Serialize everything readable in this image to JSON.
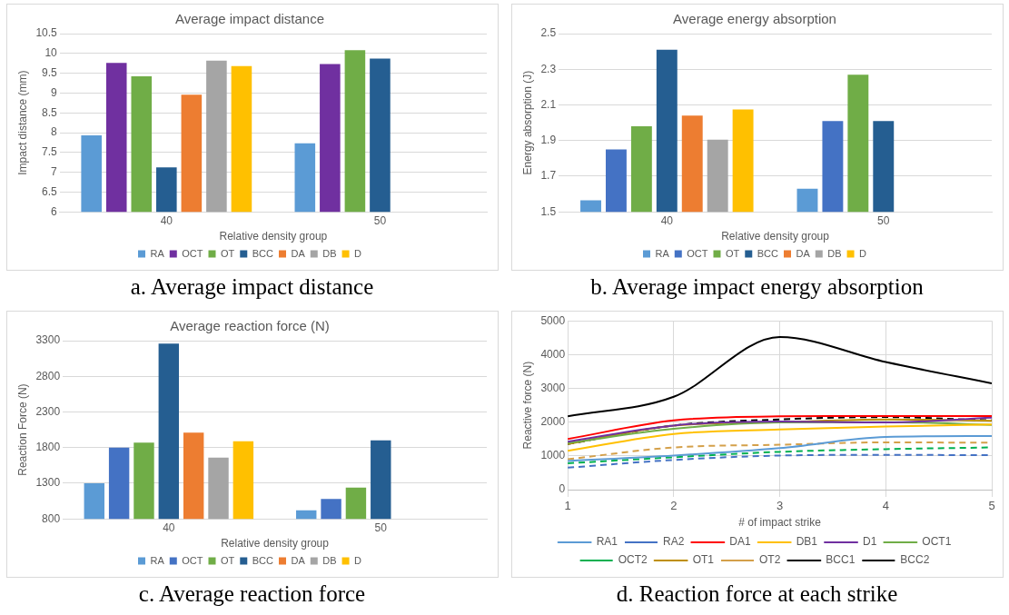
{
  "chart_data": [
    {
      "type": "bar",
      "title": "Average impact distance",
      "xlabel": "Relative density group",
      "ylabel": "Impact distance (mm)",
      "categories": [
        "40",
        "50"
      ],
      "series": [
        {
          "name": "RA",
          "color": "#5b9bd5",
          "values": [
            7.93,
            7.73
          ]
        },
        {
          "name": "OCT",
          "color": "#7030a0",
          "values": [
            9.76,
            9.73
          ]
        },
        {
          "name": "OT",
          "color": "#70ad47",
          "values": [
            9.42,
            10.08
          ]
        },
        {
          "name": "BCC",
          "color": "#255e91",
          "values": [
            7.12,
            9.87
          ]
        },
        {
          "name": "DA",
          "color": "#ed7d31",
          "values": [
            8.96,
            null
          ]
        },
        {
          "name": "DB",
          "color": "#a5a5a5",
          "values": [
            9.82,
            null
          ]
        },
        {
          "name": "D",
          "color": "#ffc000",
          "values": [
            9.68,
            null
          ]
        }
      ],
      "ylim": [
        6,
        10.5
      ],
      "yticks": [
        6,
        6.5,
        7,
        7.5,
        8,
        8.5,
        9,
        9.5,
        10,
        10.5
      ],
      "grid": "y",
      "legend": "bottom",
      "annotations": [
        "a. Average impact distance"
      ]
    },
    {
      "type": "bar",
      "title": "Average energy absorption",
      "xlabel": "Relative density group",
      "ylabel": "Energy absorption (J)",
      "categories": [
        "40",
        "50"
      ],
      "series": [
        {
          "name": "RA",
          "color": "#5b9bd5",
          "values": [
            1.565,
            1.63
          ]
        },
        {
          "name": "OCT",
          "color": "#4472c4",
          "values": [
            1.85,
            2.01
          ]
        },
        {
          "name": "OT",
          "color": "#70ad47",
          "values": [
            1.98,
            2.27
          ]
        },
        {
          "name": "BCC",
          "color": "#255e91",
          "values": [
            2.41,
            2.01
          ]
        },
        {
          "name": "DA",
          "color": "#ed7d31",
          "values": [
            2.04,
            null
          ]
        },
        {
          "name": "DB",
          "color": "#a5a5a5",
          "values": [
            1.905,
            null
          ]
        },
        {
          "name": "D",
          "color": "#ffc000",
          "values": [
            2.075,
            null
          ]
        }
      ],
      "ylim": [
        1.5,
        2.5
      ],
      "yticks": [
        1.5,
        1.7,
        1.9,
        2.1,
        2.3,
        2.5
      ],
      "grid": "y",
      "legend": "bottom",
      "annotations": [
        "b. Average impact energy absorption"
      ]
    },
    {
      "type": "bar",
      "title": "Average reaction force (N)",
      "xlabel": "Relative density group",
      "ylabel": "Reaction Force (N)",
      "categories": [
        "40",
        "50"
      ],
      "series": [
        {
          "name": "RA",
          "color": "#5b9bd5",
          "values": [
            1300,
            920
          ]
        },
        {
          "name": "OCT",
          "color": "#4472c4",
          "values": [
            1800,
            1080
          ]
        },
        {
          "name": "OT",
          "color": "#70ad47",
          "values": [
            1870,
            1240
          ]
        },
        {
          "name": "BCC",
          "color": "#255e91",
          "values": [
            3260,
            1900
          ]
        },
        {
          "name": "DA",
          "color": "#ed7d31",
          "values": [
            2010,
            null
          ]
        },
        {
          "name": "DB",
          "color": "#a5a5a5",
          "values": [
            1660,
            null
          ]
        },
        {
          "name": "D",
          "color": "#ffc000",
          "values": [
            1890,
            null
          ]
        }
      ],
      "ylim": [
        800,
        3300
      ],
      "yticks": [
        800,
        1300,
        1800,
        2300,
        2800,
        3300
      ],
      "grid": "y",
      "legend": "bottom",
      "annotations": [
        "c. Average reaction force"
      ]
    },
    {
      "type": "line",
      "xlabel": "# of impact strike",
      "ylabel": "Reactive force (N)",
      "x": [
        1,
        2,
        3,
        4,
        5
      ],
      "series": [
        {
          "name": "RA1",
          "color": "#5b9bd5",
          "values": [
            850,
            1010,
            1230,
            1560,
            1590
          ]
        },
        {
          "name": "RA2",
          "color": "#4472c4",
          "line_style": "dashed",
          "values": [
            650,
            880,
            1010,
            1030,
            1020
          ]
        },
        {
          "name": "DA1",
          "color": "#ff0000",
          "values": [
            1500,
            2050,
            2170,
            2180,
            2180
          ]
        },
        {
          "name": "DB1",
          "color": "#ffc000",
          "values": [
            1150,
            1650,
            1780,
            1870,
            1930
          ]
        },
        {
          "name": "D1",
          "color": "#7030a0",
          "values": [
            1420,
            1900,
            2020,
            1990,
            2130
          ]
        },
        {
          "name": "OCT1",
          "color": "#70ad47",
          "values": [
            1380,
            1800,
            1990,
            2000,
            1920
          ]
        },
        {
          "name": "OCT2",
          "color": "#00b050",
          "line_style": "dashed",
          "values": [
            780,
            960,
            1120,
            1200,
            1250
          ]
        },
        {
          "name": "OT1",
          "color": "#bf8f00",
          "values": [
            1350,
            1900,
            2000,
            2080,
            2040
          ]
        },
        {
          "name": "OT2",
          "color": "#d4a04a",
          "line_style": "dashed",
          "values": [
            900,
            1250,
            1330,
            1400,
            1390
          ]
        },
        {
          "name": "BCC1",
          "color": "#000000",
          "values": [
            2170,
            2750,
            4520,
            3780,
            3150
          ]
        },
        {
          "name": "BCC2",
          "color": "#000000",
          "line_style": "dashed",
          "values": [
            1350,
            1900,
            2080,
            2150,
            2050
          ]
        }
      ],
      "xlim": [
        1,
        5
      ],
      "xticks": [
        1,
        2,
        3,
        4,
        5
      ],
      "ylim": [
        0,
        5000
      ],
      "yticks": [
        0,
        1000,
        2000,
        3000,
        4000,
        5000
      ],
      "grid": true,
      "legend": "bottom",
      "annotations": [
        "d. Reaction force at each strike"
      ]
    }
  ]
}
